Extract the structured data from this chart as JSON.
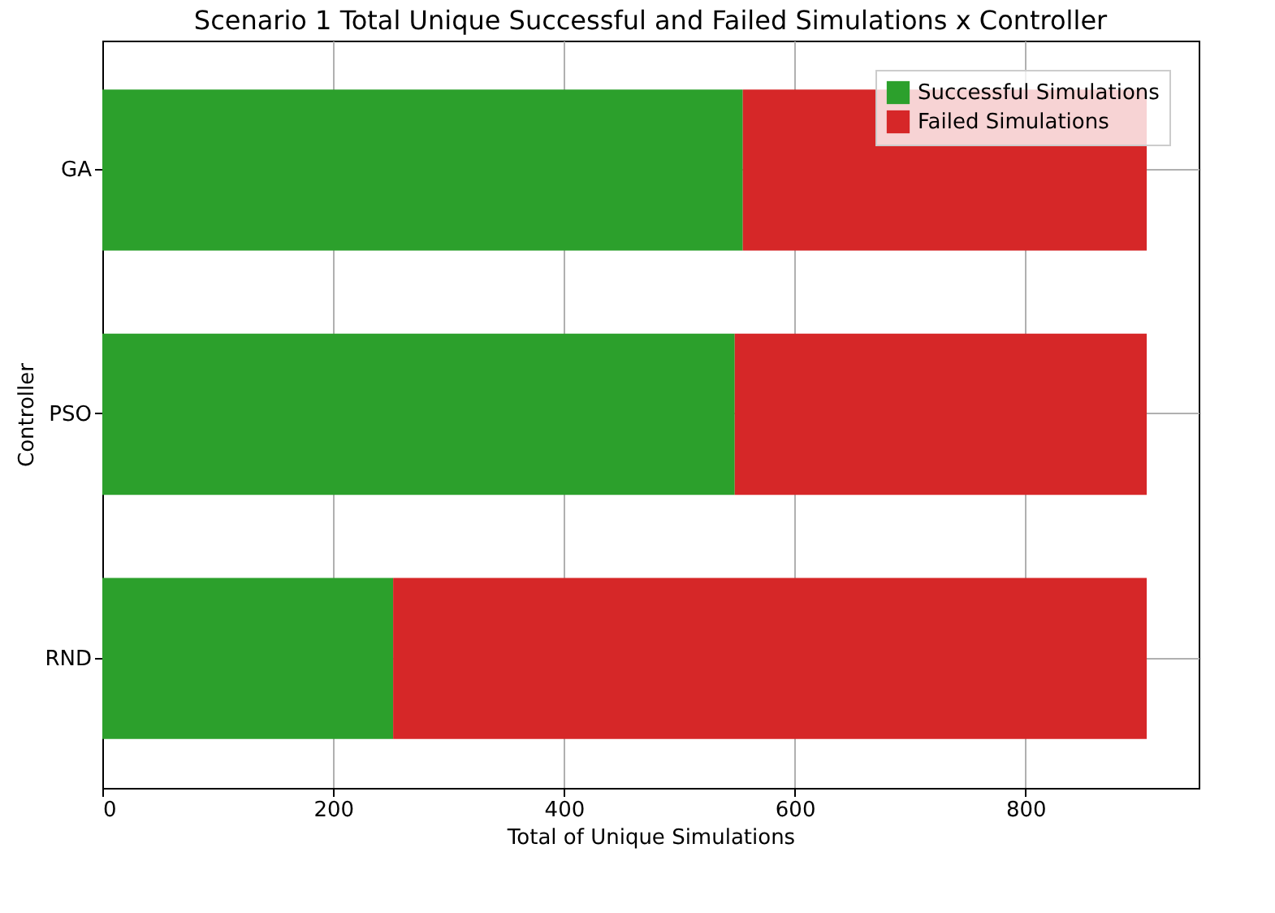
{
  "chart_data": {
    "type": "bar",
    "orientation": "horizontal",
    "stacked": true,
    "title": "Scenario 1 Total Unique Successful and Failed Simulations x Controller",
    "xlabel": "Total of Unique Simulations",
    "ylabel": "Controller",
    "categories": [
      "GA",
      "PSO",
      "RND"
    ],
    "series": [
      {
        "name": "Successful Simulations",
        "color": "#2ca02c",
        "values": [
          555,
          548,
          252
        ]
      },
      {
        "name": "Failed Simulations",
        "color": "#d62728",
        "values": [
          350,
          357,
          653
        ]
      }
    ],
    "xlim": [
      0,
      950
    ],
    "xticks": [
      0,
      200,
      400,
      600,
      800
    ],
    "grid": true,
    "legend": "top right"
  }
}
